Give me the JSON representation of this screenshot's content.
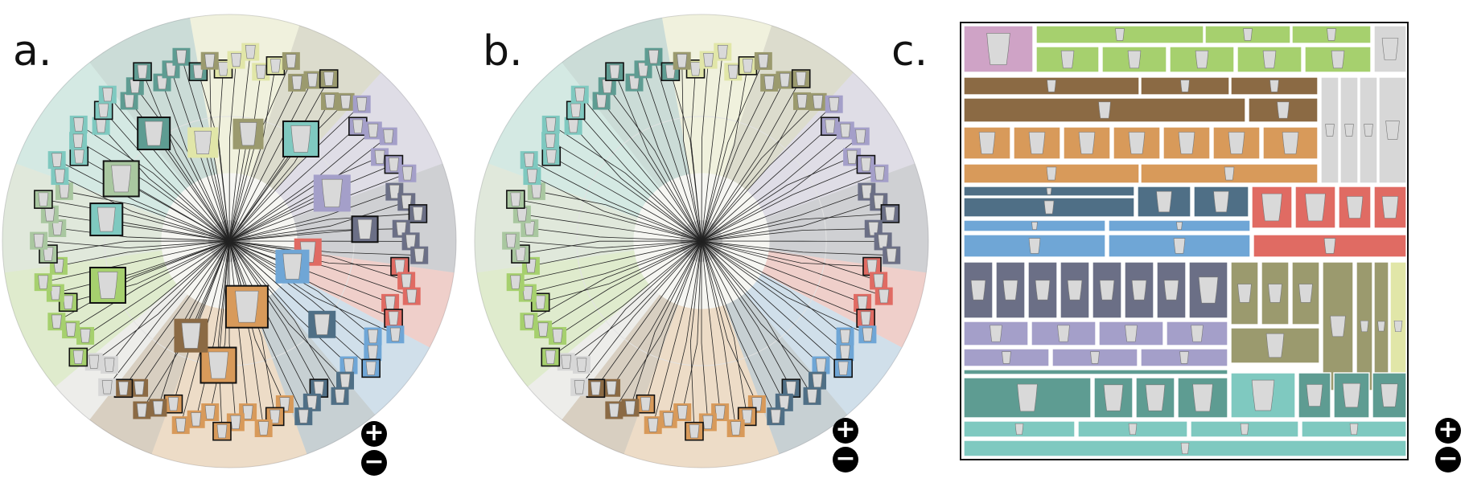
{
  "panels": [
    {
      "id": "a",
      "label": "a.",
      "type": "radial-tree-with-thumbnails"
    },
    {
      "id": "b",
      "label": "b.",
      "type": "radial-tree-leaves-only"
    },
    {
      "id": "c",
      "label": "c.",
      "type": "treemap"
    }
  ],
  "zoom_controls": {
    "plus": "+",
    "minus": "−"
  },
  "thumbnail_icon": "vase-silhouette-icon",
  "cluster_colors": [
    "#a9c7a0",
    "#9b9a6e",
    "#a49fc9",
    "#6b6f86",
    "#e06b63",
    "#6fa6d6",
    "#4f6f86",
    "#d89a5a",
    "#8b6a44",
    "#d7d7d7",
    "#a6d06e",
    "#e1e6a8",
    "#7fc9c0",
    "#5e9c92",
    "#cfa3c6"
  ]
}
